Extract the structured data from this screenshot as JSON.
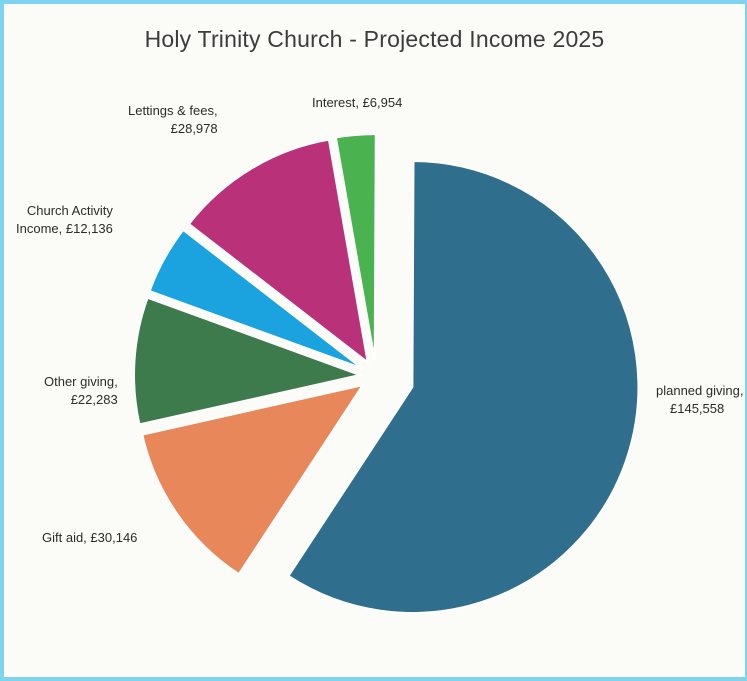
{
  "chart_data": {
    "type": "pie",
    "title": "Holy Trinity Church - Projected Income 2025",
    "exploded": true,
    "slices": [
      {
        "name": "planned giving",
        "value_label": "£145,558",
        "value": 145558,
        "color": "#2f6f8d"
      },
      {
        "name": "Gift aid",
        "value_label": "£30,146",
        "value": 30146,
        "color": "#e8885a"
      },
      {
        "name": "Other giving",
        "value_label": "£22,283",
        "value": 22283,
        "color": "#3d7a4c"
      },
      {
        "name": "Church Activity Income",
        "value_label": "£12,136",
        "value": 12136,
        "color": "#1ba3df"
      },
      {
        "name": "Lettings & fees",
        "value_label": "£28,978",
        "value": 28978,
        "color": "#b93178"
      },
      {
        "name": "Interest",
        "value_label": "£6,954",
        "value": 6954,
        "color": "#4ab34f"
      }
    ],
    "labels": {
      "planned": {
        "line1": "planned giving,",
        "line2": "£145,558"
      },
      "giftaid": {
        "line1": "Gift aid, £30,146"
      },
      "other": {
        "line1": "Other giving,",
        "line2": "£22,283"
      },
      "activity": {
        "line1": "Church Activity",
        "line2": "Income, £12,136"
      },
      "lettings": {
        "line1": "Lettings & fees,",
        "line2": "£28,978"
      },
      "interest": {
        "line1": "Interest, £6,954"
      }
    }
  }
}
